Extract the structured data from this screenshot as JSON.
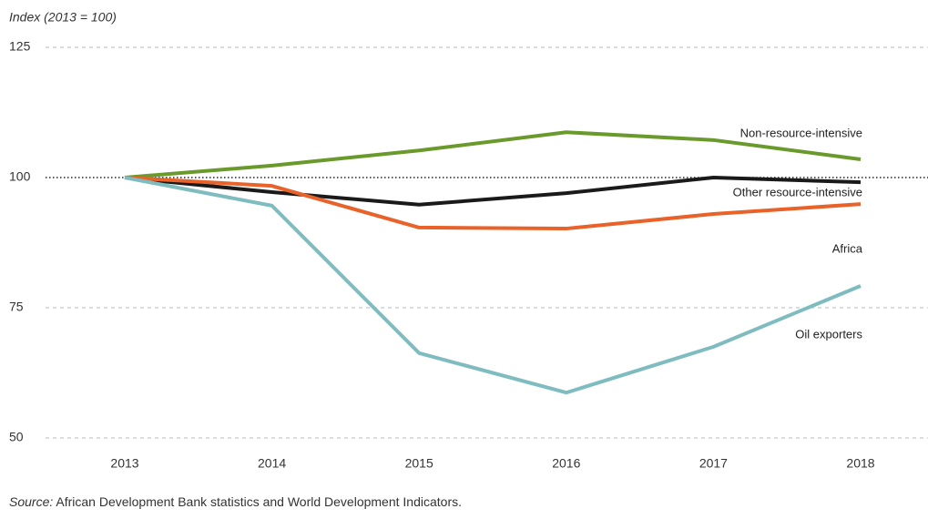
{
  "chart_data": {
    "type": "line",
    "y_axis_label": "Index (2013 = 100)",
    "x": [
      2013,
      2014,
      2015,
      2016,
      2017,
      2018
    ],
    "ylim": [
      50,
      125
    ],
    "yticks": [
      50,
      75,
      100,
      125
    ],
    "grid": true,
    "reference_line": 100,
    "series": [
      {
        "name": "Non-resource-intensive",
        "color": "#6a9a2c",
        "values": [
          100,
          102.3,
          105.2,
          108.7,
          107.2,
          103.5
        ]
      },
      {
        "name": "Other resource-intensive",
        "color": "#1a1a1a",
        "values": [
          100,
          97.2,
          94.8,
          97.0,
          100,
          99.1
        ]
      },
      {
        "name": "Africa",
        "color": "#e8622a",
        "values": [
          100,
          98.4,
          90.4,
          90.2,
          93.0,
          94.9
        ]
      },
      {
        "name": "Oil exporters",
        "color": "#7fbcc0",
        "values": [
          100,
          94.6,
          66.3,
          58.7,
          67.5,
          79.2
        ]
      }
    ],
    "source_label": "Source:",
    "source": "African Development Bank statistics and World Development Indicators."
  }
}
